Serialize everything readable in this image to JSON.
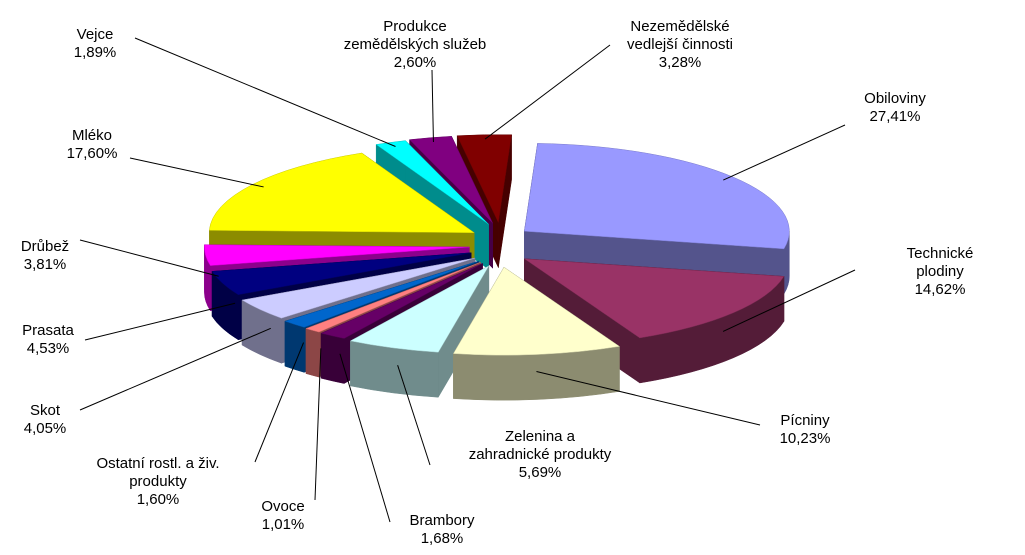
{
  "chart_data": {
    "type": "pie3d",
    "categories": [
      "Obiloviny",
      "Technické plodiny",
      "Pícniny",
      "Zelenina  a\nzahradnické  produkty",
      "Brambory",
      "Ovoce",
      "Ostatní rostl. a živ.\nprodukty",
      "Skot",
      "Prasata",
      "Drůbež",
      "Mléko",
      "Vejce",
      "Produkce\nzemědělských služeb",
      "Nezemědělské\nvedlejší  činnosti"
    ],
    "values": [
      27.41,
      14.62,
      10.23,
      5.69,
      1.68,
      1.01,
      1.6,
      4.05,
      4.53,
      3.81,
      17.6,
      1.89,
      2.6,
      3.28
    ],
    "value_labels": [
      "27,41%",
      "14,62%",
      "10,23%",
      "5,69%",
      "1,68%",
      "1,01%",
      "1,60%",
      "4,05%",
      "4,53%",
      "3,81%",
      "17,60%",
      "1,89%",
      "2,60%",
      "3,28%"
    ],
    "colors": [
      "#9999ff",
      "#993366",
      "#ffffcc",
      "#ccffff",
      "#660066",
      "#ff8080",
      "#0066cc",
      "#ccccff",
      "#000080",
      "#ff00ff",
      "#ffff00",
      "#00ffff",
      "#800080",
      "#800000"
    ]
  }
}
